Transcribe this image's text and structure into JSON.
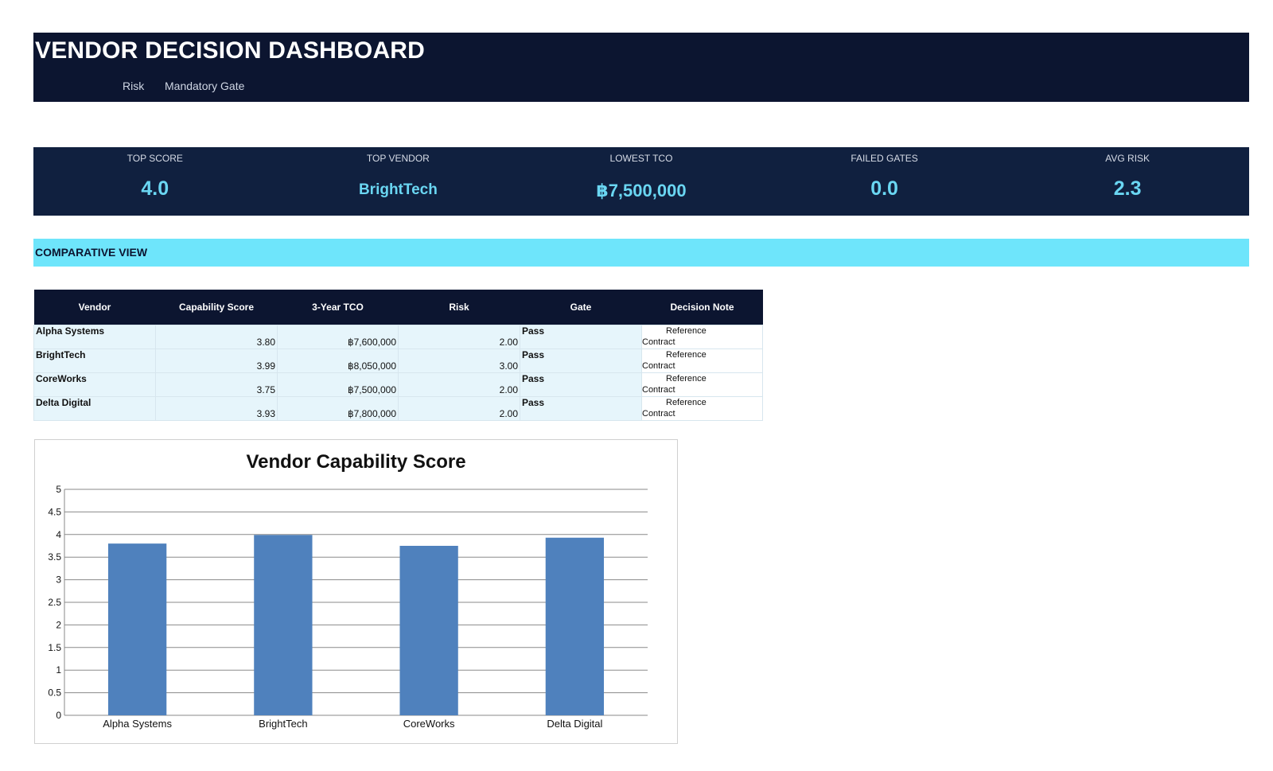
{
  "header": {
    "title": "VENDOR DECISION DASHBOARD",
    "nav": [
      "Risk",
      "Mandatory Gate"
    ]
  },
  "kpis": [
    {
      "label": "TOP SCORE",
      "value": "4.0"
    },
    {
      "label": "TOP VENDOR",
      "value": "BrightTech"
    },
    {
      "label": "LOWEST TCO",
      "value": "฿7,500,000"
    },
    {
      "label": "FAILED GATES",
      "value": "0.0"
    },
    {
      "label": "AVG RISK",
      "value": "2.3"
    }
  ],
  "section": {
    "title": "COMPARATIVE VIEW"
  },
  "table": {
    "columns": [
      "Vendor",
      "Capability Score",
      "3-Year TCO",
      "Risk",
      "Gate",
      "Decision Note"
    ],
    "rows": [
      {
        "vendor": "Alpha Systems",
        "score": "3.80",
        "tco": "฿7,600,000",
        "risk": "2.00",
        "gate": "Pass",
        "note1": "Reference",
        "note2": "Contract"
      },
      {
        "vendor": "BrightTech",
        "score": "3.99",
        "tco": "฿8,050,000",
        "risk": "3.00",
        "gate": "Pass",
        "note1": "Reference",
        "note2": "Contract"
      },
      {
        "vendor": "CoreWorks",
        "score": "3.75",
        "tco": "฿7,500,000",
        "risk": "2.00",
        "gate": "Pass",
        "note1": "Reference",
        "note2": "Contract"
      },
      {
        "vendor": "Delta Digital",
        "score": "3.93",
        "tco": "฿7,800,000",
        "risk": "2.00",
        "gate": "Pass",
        "note1": "Reference",
        "note2": "Contract"
      }
    ]
  },
  "colors": {
    "bar": "#4f81bd",
    "header_bg": "#0c1530",
    "kpi_value": "#6ad6f2",
    "section_bg": "#6ee5fb"
  },
  "chart_data": {
    "type": "bar",
    "title": "Vendor Capability Score",
    "categories": [
      "Alpha Systems",
      "BrightTech",
      "CoreWorks",
      "Delta Digital"
    ],
    "values": [
      3.8,
      3.99,
      3.75,
      3.93
    ],
    "ylim": [
      0,
      5
    ],
    "yticks": [
      "0",
      "0.5",
      "1",
      "1.5",
      "2",
      "2.5",
      "3",
      "3.5",
      "4",
      "4.5",
      "5"
    ],
    "xlabel": "",
    "ylabel": "",
    "grid": true,
    "legend": "none"
  }
}
